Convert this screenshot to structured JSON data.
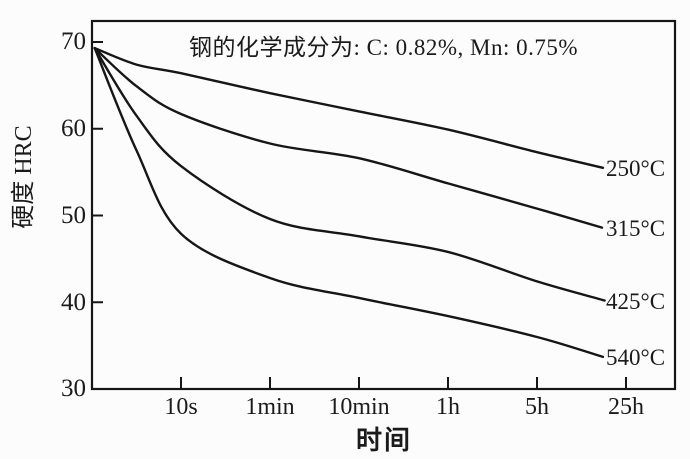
{
  "figure": {
    "background": "#fcfcfc",
    "line_color": "#161616",
    "text_color": "#1b1b1b"
  },
  "chart_data": {
    "type": "line",
    "title": "钢的化学成分为: C: 0.82%, Mn: 0.75%",
    "xlabel": "时间",
    "ylabel": "硬度 HRC",
    "x_ticks": [
      "10s",
      "1min",
      "10min",
      "1h",
      "5h",
      "25h"
    ],
    "y_ticks": [
      "70",
      "60",
      "50",
      "40",
      "30"
    ],
    "ylim": [
      30,
      72
    ],
    "grid": false,
    "axis_style": "closed-box, ticks inside",
    "x_scale_note": "logarithmic-style time axis; u is position in tick units (1=10s, 2=1min, 3=10min, 4=1h, 5=5h, 6=25h, 0=left axis)",
    "series": [
      {
        "name": "250°C",
        "u": [
          0.03,
          0.5,
          1,
          2,
          3,
          4,
          5,
          5.74
        ],
        "hrc": [
          69.3,
          67.4,
          66.4,
          64.1,
          62.0,
          59.9,
          57.3,
          55.5
        ]
      },
      {
        "name": "315°C",
        "u": [
          0.03,
          0.5,
          1,
          2,
          3,
          4,
          5,
          5.73
        ],
        "hrc": [
          69.3,
          64.9,
          61.7,
          58.3,
          56.6,
          53.7,
          50.8,
          48.6
        ]
      },
      {
        "name": "425°C",
        "u": [
          0.03,
          0.5,
          1,
          2,
          3,
          4,
          5,
          5.76
        ],
        "hrc": [
          69.3,
          61.5,
          55.7,
          49.6,
          47.6,
          45.8,
          42.4,
          40.2
        ]
      },
      {
        "name": "540°C",
        "u": [
          0.03,
          0.5,
          1,
          2,
          3,
          4,
          5,
          5.74
        ],
        "hrc": [
          69.3,
          57.5,
          47.9,
          42.8,
          40.5,
          38.4,
          36.0,
          33.7
        ]
      }
    ]
  }
}
